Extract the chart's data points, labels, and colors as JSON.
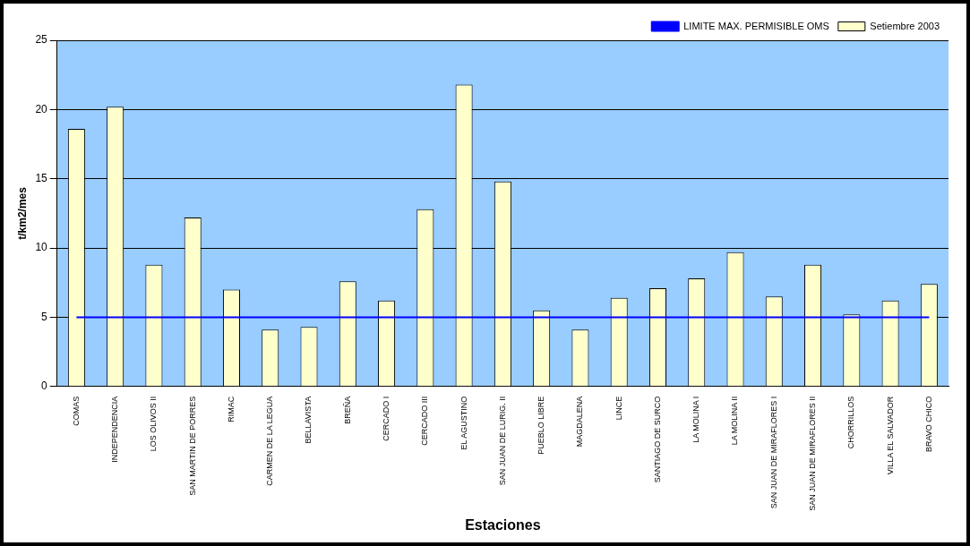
{
  "chart_data": {
    "type": "bar",
    "xlabel": "Estaciones",
    "ylabel": "t/km2/mes",
    "categories": [
      "COMAS",
      "INDEPENDENCIA",
      "LOS OLIVOS II",
      "SAN MARTIN DE PORRES",
      "RIMAC",
      "CARMEN DE LA LEGUA",
      "BELLAVISTA",
      "BREÑA",
      "CERCADO I",
      "CERCADO III",
      "EL AGUSTINO",
      "SAN JUAN DE LURIG. II",
      "PUEBLO LIBRE",
      "MAGDALENA",
      "LINCE",
      "SANTIAGO DE SURCO",
      "LA MOLINA I",
      "LA MOLINA II",
      "SAN JUAN DE MIRAFLORES I",
      "SAN JUAN DE MIRAFLORES II",
      "CHORRILLOS",
      "VILLA EL SALVADOR",
      "BRAVO CHICO"
    ],
    "series": [
      {
        "name": "Setiembre 2003",
        "color": "#ffffcc",
        "values": [
          18.6,
          20.2,
          8.8,
          12.2,
          7.0,
          4.1,
          4.3,
          7.6,
          6.2,
          12.8,
          21.8,
          14.8,
          5.5,
          4.1,
          6.4,
          7.1,
          7.8,
          9.7,
          6.5,
          8.8,
          5.2,
          6.2,
          7.4
        ]
      },
      {
        "name": "LIMITE MAX. PERMISIBLE OMS",
        "type": "line",
        "color": "#0000ff",
        "values": [
          5,
          5,
          5,
          5,
          5,
          5,
          5,
          5,
          5,
          5,
          5,
          5,
          5,
          5,
          5,
          5,
          5,
          5,
          5,
          5,
          5,
          5,
          5
        ]
      }
    ],
    "ylim": [
      0,
      25
    ],
    "yticks": [
      0,
      5,
      10,
      15,
      20,
      25
    ],
    "grid": "y",
    "legend": "top right",
    "marker": "none",
    "line_style": "solid"
  }
}
